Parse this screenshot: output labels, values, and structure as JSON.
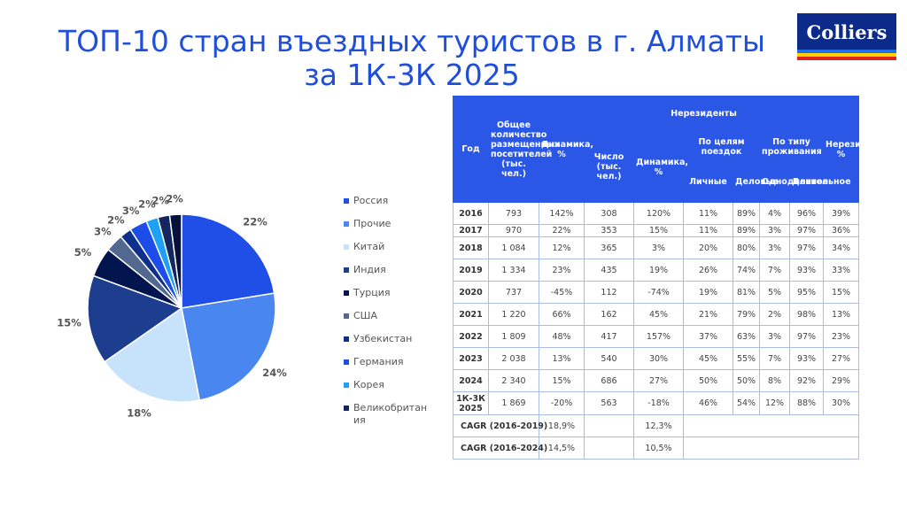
{
  "title": {
    "line1": "ТОП-10 стран въездных туристов в г. Алматы",
    "line2": "за 1К-3К 2025"
  },
  "logo": {
    "text": "Colliers"
  },
  "colors": {
    "header_blue": "#2b57e6",
    "title_blue": "#1f4fd9",
    "logo_navy": "#0b2a8a"
  },
  "chart_data": {
    "type": "pie",
    "slices": [
      {
        "name": "Россия",
        "value": 22,
        "label": "22%",
        "color": "#1f4fe6"
      },
      {
        "name": "Прочие",
        "value": 24,
        "label": "24%",
        "color": "#4a86f0"
      },
      {
        "name": "Китай",
        "value": 18,
        "label": "18%",
        "color": "#c7e3fb"
      },
      {
        "name": "Индия",
        "value": 15,
        "label": "15%",
        "color": "#1d3d8f"
      },
      {
        "name": "Турция",
        "value": 5,
        "label": "5%",
        "color": "#03154f"
      },
      {
        "name": "США",
        "value": 3,
        "label": "3%",
        "color": "#51698f"
      },
      {
        "name": "Узбекистан",
        "value": 2,
        "label": "2%",
        "color": "#0f2f8d"
      },
      {
        "name": "Германия",
        "value": 3,
        "label": "3%",
        "color": "#1d4de8"
      },
      {
        "name": "Корея",
        "value": 2,
        "label": "2%",
        "color": "#1ea1f5"
      },
      {
        "name": "Великобритания",
        "value": 2,
        "label": "2%",
        "color": "#14265e"
      },
      {
        "name": "",
        "value": 2,
        "label": "2%",
        "color": "#06123d"
      }
    ],
    "legend": [
      "Россия",
      "Прочие",
      "Китай",
      "Индия",
      "Турция",
      "США",
      "Узбекистан",
      "Германия",
      "Корея",
      "Великобритания"
    ],
    "legend_position": "right"
  },
  "table": {
    "headers": {
      "year": "Год",
      "total": "Общее количество размещенных посетителей (тыс. чел.)",
      "dynamics": "Динамика, %",
      "nonresidents": "Нерезиденты",
      "count": "Число (тыс. чел.)",
      "count_dynamics": "Динамика, %",
      "purpose": "По целям поездок",
      "personal": "Личные",
      "business": "Деловые",
      "stay_type": "По типу проживания",
      "one_day": "Однодневное",
      "long_term": "Длительное",
      "nonresidents_pct": "Нерезиденты, %"
    },
    "rows": [
      [
        "2016",
        "793",
        "142%",
        "308",
        "120%",
        "11%",
        "89%",
        "4%",
        "96%",
        "39%"
      ],
      [
        "2017",
        "970",
        "22%",
        "353",
        "15%",
        "11%",
        "89%",
        "3%",
        "97%",
        "36%"
      ],
      [
        "2018",
        "1 084",
        "12%",
        "365",
        "3%",
        "20%",
        "80%",
        "3%",
        "97%",
        "34%"
      ],
      [
        "2019",
        "1 334",
        "23%",
        "435",
        "19%",
        "26%",
        "74%",
        "7%",
        "93%",
        "33%"
      ],
      [
        "2020",
        "737",
        "-45%",
        "112",
        "-74%",
        "19%",
        "81%",
        "5%",
        "95%",
        "15%"
      ],
      [
        "2021",
        "1 220",
        "66%",
        "162",
        "45%",
        "21%",
        "79%",
        "2%",
        "98%",
        "13%"
      ],
      [
        "2022",
        "1 809",
        "48%",
        "417",
        "157%",
        "37%",
        "63%",
        "3%",
        "97%",
        "23%"
      ],
      [
        "2023",
        "2 038",
        "13%",
        "540",
        "30%",
        "45%",
        "55%",
        "7%",
        "93%",
        "27%"
      ],
      [
        "2024",
        "2 340",
        "15%",
        "686",
        "27%",
        "50%",
        "50%",
        "8%",
        "92%",
        "29%"
      ],
      [
        "1К-3К 2025",
        "1 869",
        "-20%",
        "563",
        "-18%",
        "46%",
        "54%",
        "12%",
        "88%",
        "30%"
      ]
    ],
    "cagr": [
      {
        "label": "CAGR (2016-2019)",
        "total": "18,9%",
        "count": "12,3%"
      },
      {
        "label": "CAGR (2016-2024)",
        "total": "14,5%",
        "count": "10,5%"
      }
    ]
  }
}
